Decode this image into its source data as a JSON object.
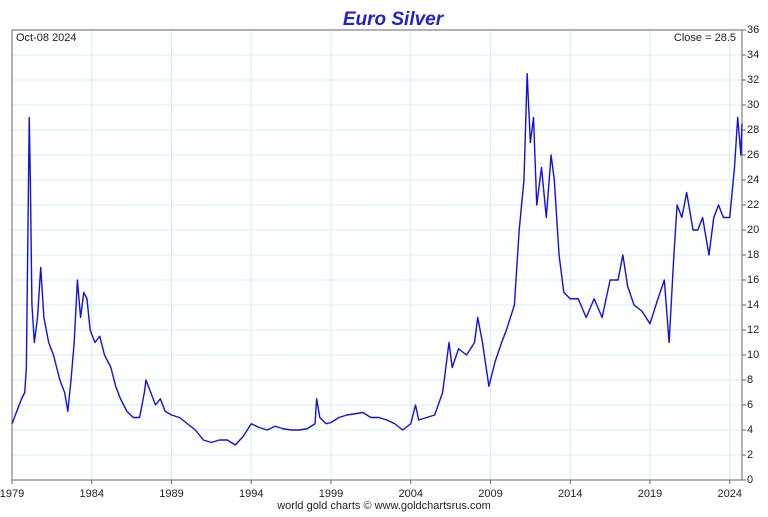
{
  "chart_data": {
    "type": "line",
    "title": "Euro Silver",
    "date_label": "Oct-08  2024",
    "close_label": "Close = 28.5",
    "footer": "world gold charts © www.goldchartsrus.com",
    "xlim": [
      1979,
      2024.77
    ],
    "xticks": [
      1979,
      1984,
      1989,
      1994,
      1999,
      2004,
      2009,
      2014,
      2019,
      2024
    ],
    "ylim": [
      0,
      36
    ],
    "yticks": [
      0,
      2,
      4,
      6,
      8,
      10,
      12,
      14,
      16,
      18,
      20,
      22,
      24,
      26,
      28,
      30,
      32,
      34,
      36
    ],
    "grid": true,
    "x": [
      1979.0,
      1979.3,
      1979.6,
      1979.8,
      1979.9,
      1980.0,
      1980.08,
      1980.15,
      1980.25,
      1980.4,
      1980.6,
      1980.8,
      1981.0,
      1981.3,
      1981.6,
      1982.0,
      1982.3,
      1982.5,
      1982.7,
      1982.9,
      1983.1,
      1983.3,
      1983.5,
      1983.7,
      1983.9,
      1984.2,
      1984.5,
      1984.8,
      1985.2,
      1985.5,
      1985.8,
      1986.2,
      1986.6,
      1987.0,
      1987.3,
      1987.4,
      1987.7,
      1988.0,
      1988.3,
      1988.6,
      1989.0,
      1989.5,
      1990.0,
      1990.5,
      1991.0,
      1991.5,
      1992.0,
      1992.5,
      1993.0,
      1993.5,
      1994.0,
      1994.5,
      1995.0,
      1995.5,
      1996.0,
      1996.5,
      1997.0,
      1997.5,
      1998.0,
      1998.1,
      1998.3,
      1998.7,
      1999.0,
      1999.5,
      2000.0,
      2000.5,
      2001.0,
      2001.5,
      2002.0,
      2002.5,
      2003.0,
      2003.5,
      2004.0,
      2004.3,
      2004.5,
      2005.0,
      2005.5,
      2006.0,
      2006.4,
      2006.6,
      2007.0,
      2007.5,
      2008.0,
      2008.2,
      2008.5,
      2008.9,
      2009.3,
      2009.7,
      2010.0,
      2010.5,
      2010.8,
      2011.1,
      2011.3,
      2011.5,
      2011.7,
      2011.9,
      2012.2,
      2012.5,
      2012.8,
      2013.0,
      2013.3,
      2013.6,
      2014.0,
      2014.5,
      2015.0,
      2015.5,
      2016.0,
      2016.5,
      2017.0,
      2017.3,
      2017.6,
      2018.0,
      2018.5,
      2019.0,
      2019.5,
      2019.9,
      2020.2,
      2020.5,
      2020.7,
      2021.0,
      2021.3,
      2021.7,
      2022.0,
      2022.3,
      2022.7,
      2023.0,
      2023.3,
      2023.6,
      2024.0,
      2024.3,
      2024.5,
      2024.7,
      2024.77
    ],
    "series": [
      {
        "color": "#1010e0",
        "values": [
          4.5,
          5.5,
          6.5,
          7,
          9,
          20,
          29,
          24,
          14,
          11,
          13,
          17,
          13,
          11,
          10,
          8,
          7,
          5.5,
          8,
          11,
          16,
          13,
          15,
          14.5,
          12,
          11,
          11.5,
          10,
          9,
          7.5,
          6.5,
          5.5,
          5,
          5,
          7,
          8,
          7,
          6,
          6.5,
          5.5,
          5.2,
          5,
          4.5,
          4,
          3.2,
          3,
          3.2,
          3.2,
          2.8,
          3.5,
          4.5,
          4.2,
          4,
          4.3,
          4.1,
          4,
          4,
          4.1,
          4.5,
          6.5,
          5,
          4.5,
          4.6,
          5,
          5.2,
          5.3,
          5.4,
          5,
          5,
          4.8,
          4.5,
          4,
          4.5,
          6,
          4.8,
          5,
          5.2,
          7,
          11,
          9,
          10.5,
          10,
          11,
          13,
          11,
          7.5,
          9.5,
          11,
          12,
          14,
          20,
          24,
          32.5,
          27,
          29,
          22,
          25,
          21,
          26,
          24,
          18,
          15,
          14.5,
          14.5,
          13,
          14.5,
          13,
          16,
          16,
          18,
          15.5,
          14,
          13.5,
          12.5,
          14.5,
          16,
          11,
          18,
          22,
          21,
          23,
          20,
          20,
          21,
          18,
          21,
          22,
          21,
          21,
          25,
          29,
          26,
          28.5
        ]
      }
    ]
  }
}
